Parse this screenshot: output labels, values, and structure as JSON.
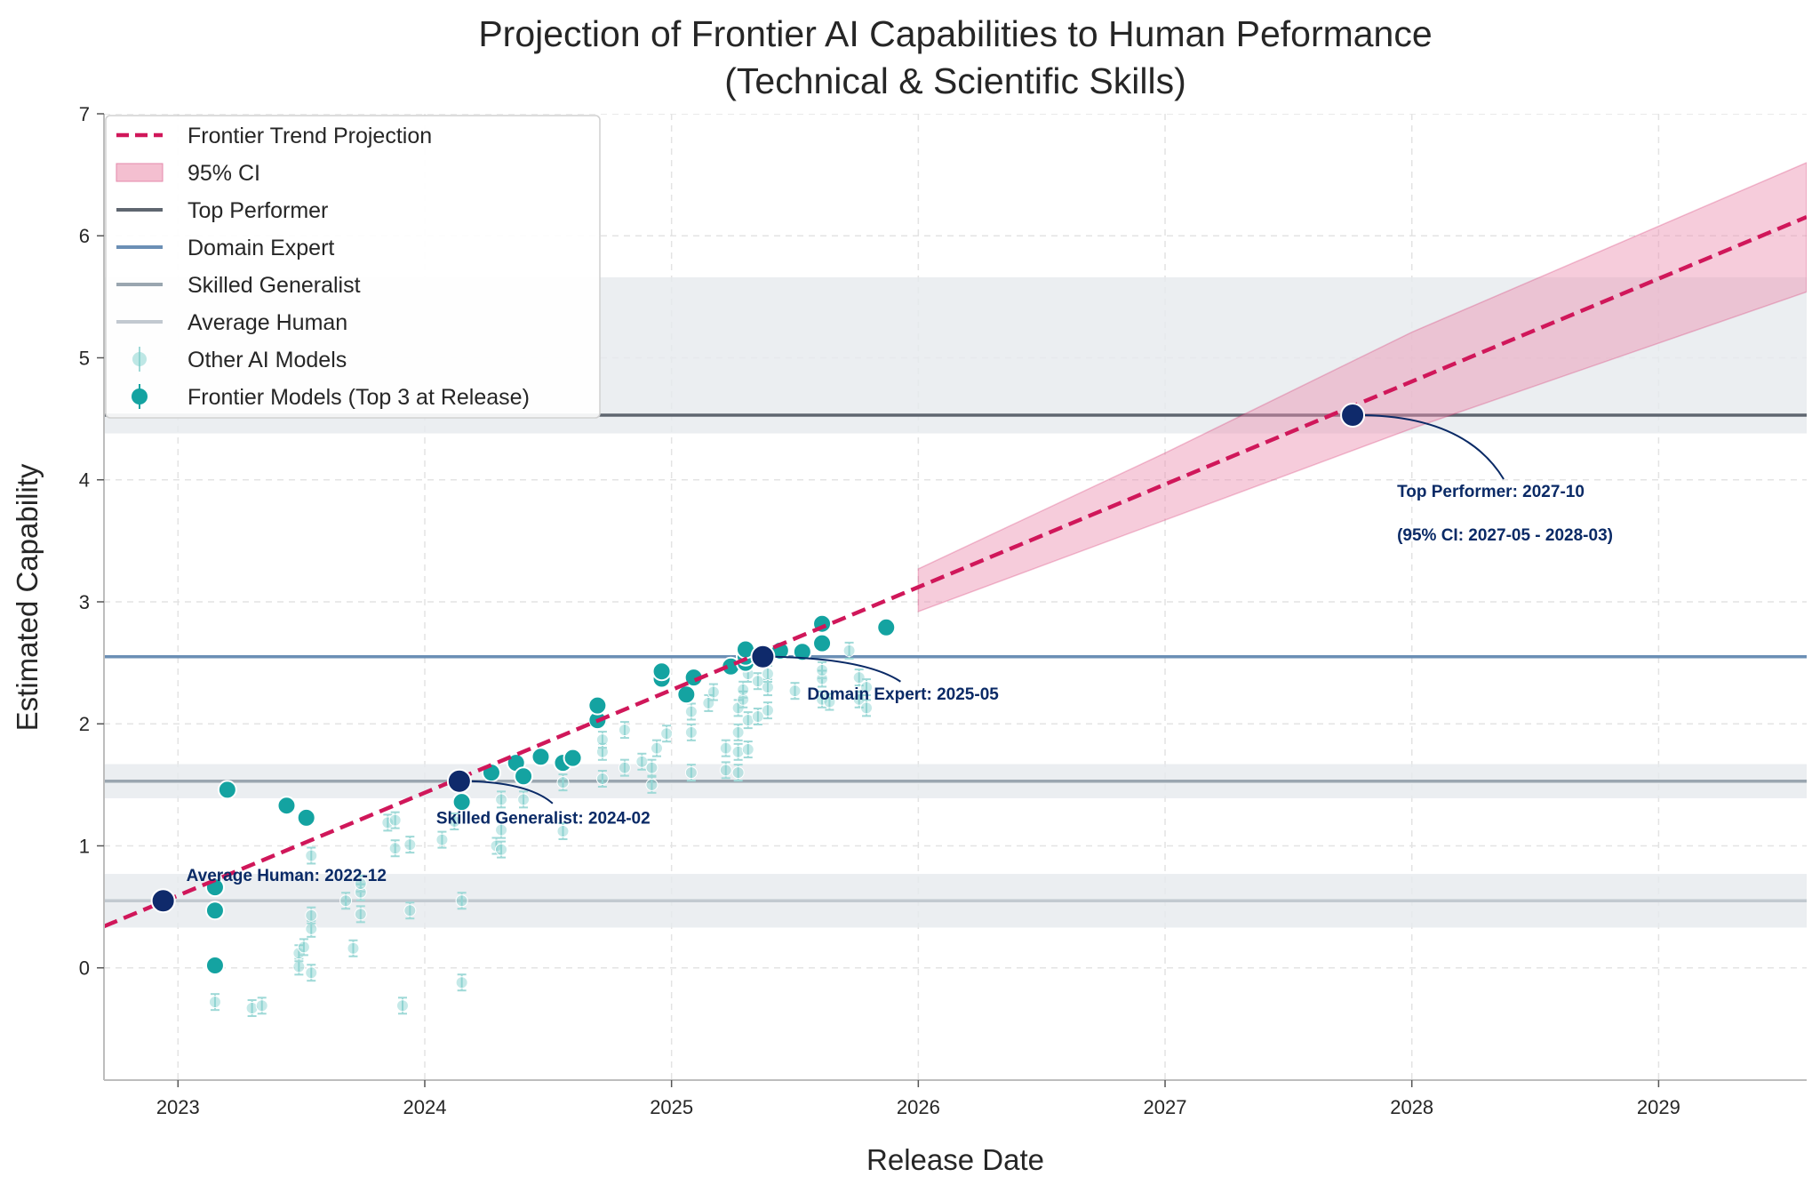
{
  "chart_data": {
    "type": "scatter",
    "title": "Projection of Frontier AI Capabilities to Human Peformance",
    "subtitle": "(Technical & Scientific Skills)",
    "xlabel": "Release Date",
    "ylabel": "Estimated Capability",
    "xlim": [
      2022.7,
      2029.6
    ],
    "ylim": [
      -0.92,
      7
    ],
    "x_ticks": [
      2023,
      2024,
      2025,
      2026,
      2027,
      2028,
      2029
    ],
    "x_tick_labels": [
      "2023",
      "2024",
      "2025",
      "2026",
      "2027",
      "2028",
      "2029"
    ],
    "y_ticks": [
      0,
      1,
      2,
      3,
      4,
      5,
      6,
      7
    ],
    "y_tick_labels": [
      "0",
      "1",
      "2",
      "3",
      "4",
      "5",
      "6",
      "7"
    ],
    "grid": true,
    "legend_position": "top-left",
    "legend": [
      {
        "label": "Frontier Trend Projection",
        "kind": "dashed-line",
        "color": "#d0175a"
      },
      {
        "label": "95% CI",
        "kind": "patch",
        "color": "#f4bfd0"
      },
      {
        "label": "Top Performer",
        "kind": "line",
        "color": "#5f6670"
      },
      {
        "label": "Domain Expert",
        "kind": "line",
        "color": "#6b8fb5"
      },
      {
        "label": "Skilled Generalist",
        "kind": "line",
        "color": "#9aa6b0"
      },
      {
        "label": "Average Human",
        "kind": "line",
        "color": "#c2c9d0"
      },
      {
        "label": "Other AI Models",
        "kind": "marker-faint",
        "color": "#7ecfcc"
      },
      {
        "label": "Frontier Models (Top 3 at Release)",
        "kind": "marker",
        "color": "#14a3a1"
      }
    ],
    "human_levels": [
      {
        "name": "Top Performer",
        "value": 4.53,
        "band": [
          4.38,
          5.66
        ],
        "color": "#5f6670"
      },
      {
        "name": "Domain Expert",
        "value": 2.55,
        "band": null,
        "color": "#6b8fb5"
      },
      {
        "name": "Skilled Generalist",
        "value": 1.53,
        "band": [
          1.39,
          1.67
        ],
        "color": "#9aa6b0"
      },
      {
        "name": "Average Human",
        "value": 0.55,
        "band": [
          0.33,
          0.77
        ],
        "color": "#c2c9d0"
      }
    ],
    "trend": {
      "x_start": 2022.7,
      "y_start": 0.34,
      "slope": 0.8426,
      "x_end": 2029.6
    },
    "ci_band": {
      "x": [
        2026.0,
        2027.0,
        2028.0,
        2029.6
      ],
      "lower": [
        2.92,
        3.67,
        4.42,
        5.54
      ],
      "upper": [
        3.27,
        4.22,
        5.21,
        6.6
      ]
    },
    "crossings": [
      {
        "label": "Average Human: 2022-12",
        "x": 2022.94,
        "y": 0.55
      },
      {
        "label": "Skilled Generalist: 2024-02",
        "x": 2024.14,
        "y": 1.53
      },
      {
        "label": "Domain Expert: 2025-05",
        "x": 2025.37,
        "y": 2.55
      },
      {
        "label": "Top Performer: 2027-10",
        "x": 2027.76,
        "y": 4.53
      },
      {
        "label": "(95% CI: 2027-05 - 2028-03)",
        "x": null,
        "y": null
      }
    ],
    "frontier_models": [
      {
        "x": 2023.15,
        "y": 0.02
      },
      {
        "x": 2023.15,
        "y": 0.47
      },
      {
        "x": 2023.15,
        "y": 0.66
      },
      {
        "x": 2023.2,
        "y": 1.46
      },
      {
        "x": 2023.44,
        "y": 1.33
      },
      {
        "x": 2023.52,
        "y": 1.23
      },
      {
        "x": 2024.15,
        "y": 1.36
      },
      {
        "x": 2024.27,
        "y": 1.6
      },
      {
        "x": 2024.37,
        "y": 1.68
      },
      {
        "x": 2024.4,
        "y": 1.57
      },
      {
        "x": 2024.47,
        "y": 1.73
      },
      {
        "x": 2024.56,
        "y": 1.68
      },
      {
        "x": 2024.6,
        "y": 1.72
      },
      {
        "x": 2024.7,
        "y": 2.03
      },
      {
        "x": 2024.7,
        "y": 2.15
      },
      {
        "x": 2024.96,
        "y": 2.37
      },
      {
        "x": 2024.96,
        "y": 2.43
      },
      {
        "x": 2025.06,
        "y": 2.24
      },
      {
        "x": 2025.09,
        "y": 2.38
      },
      {
        "x": 2025.24,
        "y": 2.47
      },
      {
        "x": 2025.3,
        "y": 2.5
      },
      {
        "x": 2025.3,
        "y": 2.55
      },
      {
        "x": 2025.3,
        "y": 2.61
      },
      {
        "x": 2025.44,
        "y": 2.6
      },
      {
        "x": 2025.53,
        "y": 2.59
      },
      {
        "x": 2025.61,
        "y": 2.66
      },
      {
        "x": 2025.61,
        "y": 2.82
      },
      {
        "x": 2025.87,
        "y": 2.79
      }
    ],
    "other_models": [
      {
        "x": 2023.15,
        "y": -0.28
      },
      {
        "x": 2023.3,
        "y": -0.33
      },
      {
        "x": 2023.34,
        "y": -0.31
      },
      {
        "x": 2023.49,
        "y": 0.01
      },
      {
        "x": 2023.49,
        "y": 0.12
      },
      {
        "x": 2023.51,
        "y": 0.17
      },
      {
        "x": 2023.54,
        "y": -0.04
      },
      {
        "x": 2023.54,
        "y": 0.32
      },
      {
        "x": 2023.54,
        "y": 0.43
      },
      {
        "x": 2023.54,
        "y": 0.92
      },
      {
        "x": 2023.68,
        "y": 0.55
      },
      {
        "x": 2023.71,
        "y": 0.16
      },
      {
        "x": 2023.74,
        "y": 0.44
      },
      {
        "x": 2023.74,
        "y": 0.62
      },
      {
        "x": 2023.74,
        "y": 0.69
      },
      {
        "x": 2023.85,
        "y": 1.19
      },
      {
        "x": 2023.88,
        "y": 0.98
      },
      {
        "x": 2023.88,
        "y": 1.21
      },
      {
        "x": 2023.91,
        "y": -0.31
      },
      {
        "x": 2023.94,
        "y": 0.47
      },
      {
        "x": 2023.94,
        "y": 1.01
      },
      {
        "x": 2024.07,
        "y": 1.05
      },
      {
        "x": 2024.12,
        "y": 1.2
      },
      {
        "x": 2024.15,
        "y": -0.12
      },
      {
        "x": 2024.15,
        "y": 0.55
      },
      {
        "x": 2024.29,
        "y": 1.0
      },
      {
        "x": 2024.31,
        "y": 0.97
      },
      {
        "x": 2024.31,
        "y": 1.13
      },
      {
        "x": 2024.31,
        "y": 1.38
      },
      {
        "x": 2024.4,
        "y": 1.38
      },
      {
        "x": 2024.56,
        "y": 1.12
      },
      {
        "x": 2024.56,
        "y": 1.52
      },
      {
        "x": 2024.72,
        "y": 1.55
      },
      {
        "x": 2024.72,
        "y": 1.77
      },
      {
        "x": 2024.72,
        "y": 1.87
      },
      {
        "x": 2024.81,
        "y": 1.64
      },
      {
        "x": 2024.81,
        "y": 1.95
      },
      {
        "x": 2024.88,
        "y": 1.69
      },
      {
        "x": 2024.92,
        "y": 1.5
      },
      {
        "x": 2024.92,
        "y": 1.64
      },
      {
        "x": 2024.94,
        "y": 1.8
      },
      {
        "x": 2024.98,
        "y": 1.92
      },
      {
        "x": 2025.08,
        "y": 1.6
      },
      {
        "x": 2025.08,
        "y": 1.93
      },
      {
        "x": 2025.08,
        "y": 2.1
      },
      {
        "x": 2025.15,
        "y": 2.17
      },
      {
        "x": 2025.17,
        "y": 2.26
      },
      {
        "x": 2025.22,
        "y": 1.62
      },
      {
        "x": 2025.22,
        "y": 1.8
      },
      {
        "x": 2025.27,
        "y": 1.6
      },
      {
        "x": 2025.27,
        "y": 1.77
      },
      {
        "x": 2025.27,
        "y": 1.93
      },
      {
        "x": 2025.27,
        "y": 2.13
      },
      {
        "x": 2025.29,
        "y": 2.2
      },
      {
        "x": 2025.29,
        "y": 2.28
      },
      {
        "x": 2025.31,
        "y": 1.79
      },
      {
        "x": 2025.31,
        "y": 2.03
      },
      {
        "x": 2025.31,
        "y": 2.41
      },
      {
        "x": 2025.35,
        "y": 2.06
      },
      {
        "x": 2025.35,
        "y": 2.35
      },
      {
        "x": 2025.39,
        "y": 2.11
      },
      {
        "x": 2025.39,
        "y": 2.3
      },
      {
        "x": 2025.39,
        "y": 2.41
      },
      {
        "x": 2025.5,
        "y": 2.27
      },
      {
        "x": 2025.61,
        "y": 2.2
      },
      {
        "x": 2025.61,
        "y": 2.37
      },
      {
        "x": 2025.61,
        "y": 2.44
      },
      {
        "x": 2025.64,
        "y": 2.18
      },
      {
        "x": 2025.72,
        "y": 2.6
      },
      {
        "x": 2025.76,
        "y": 2.2
      },
      {
        "x": 2025.76,
        "y": 2.38
      },
      {
        "x": 2025.79,
        "y": 2.13
      },
      {
        "x": 2025.79,
        "y": 2.3
      }
    ]
  }
}
